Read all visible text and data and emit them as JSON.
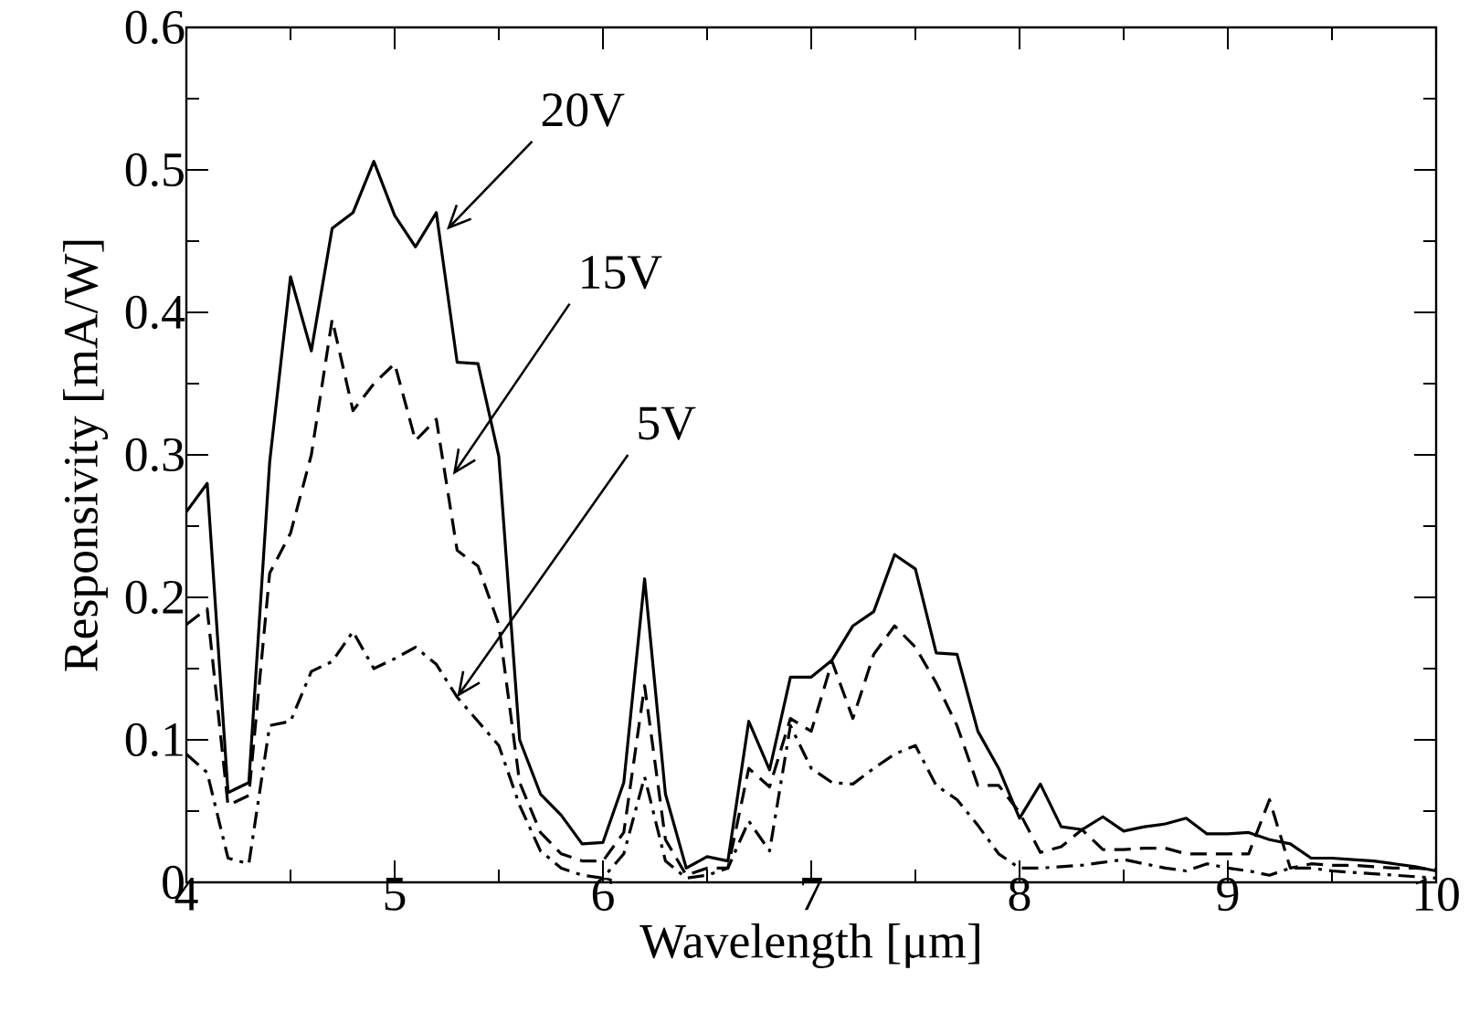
{
  "chart_data": {
    "type": "line",
    "xlabel": "Wavelength [μm]",
    "ylabel": "Responsivity [mA/W]",
    "x": [
      4.0,
      4.1,
      4.2,
      4.3,
      4.4,
      4.5,
      4.6,
      4.7,
      4.8,
      4.9,
      5.0,
      5.1,
      5.2,
      5.3,
      5.4,
      5.5,
      5.6,
      5.7,
      5.8,
      5.9,
      6.0,
      6.1,
      6.2,
      6.3,
      6.4,
      6.5,
      6.6,
      6.7,
      6.8,
      6.9,
      7.0,
      7.1,
      7.2,
      7.3,
      7.4,
      7.5,
      7.6,
      7.7,
      7.8,
      7.9,
      8.0,
      8.1,
      8.2,
      8.3,
      8.4,
      8.5,
      8.6,
      8.7,
      8.8,
      8.9,
      9.0,
      9.1,
      9.2,
      9.3,
      9.4,
      9.5,
      9.6,
      9.7,
      9.8,
      9.9,
      10.0
    ],
    "series": [
      {
        "color": "#000000",
        "line_style": "solid",
        "values": [
          0.26,
          0.28,
          0.063,
          0.07,
          0.295,
          0.425,
          0.373,
          0.459,
          0.47,
          0.506,
          0.468,
          0.446,
          0.47,
          0.365,
          0.364,
          0.299,
          0.1,
          0.062,
          0.047,
          0.027,
          0.028,
          0.07,
          0.213,
          0.062,
          0.01,
          0.018,
          0.015,
          0.113,
          0.079,
          0.144,
          0.144,
          0.156,
          0.18,
          0.19,
          0.23,
          0.22,
          0.161,
          0.16,
          0.106,
          0.08,
          0.045,
          0.069,
          0.039,
          0.037,
          0.046,
          0.036,
          0.039,
          0.041,
          0.045,
          0.034,
          0.034,
          0.035,
          0.03,
          0.027,
          0.017,
          0.017,
          0.016,
          0.015,
          0.013,
          0.011,
          0.008
        ]
      },
      {
        "color": "#000000",
        "line_style": "dashed",
        "values": [
          0.181,
          0.192,
          0.054,
          0.061,
          0.217,
          0.245,
          0.3,
          0.395,
          0.331,
          0.35,
          0.364,
          0.31,
          0.325,
          0.233,
          0.222,
          0.181,
          0.07,
          0.035,
          0.02,
          0.015,
          0.015,
          0.035,
          0.138,
          0.03,
          0.005,
          0.01,
          0.01,
          0.08,
          0.067,
          0.115,
          0.106,
          0.155,
          0.115,
          0.16,
          0.18,
          0.165,
          0.14,
          0.11,
          0.068,
          0.068,
          0.049,
          0.021,
          0.025,
          0.037,
          0.023,
          0.023,
          0.024,
          0.024,
          0.02,
          0.02,
          0.02,
          0.02,
          0.058,
          0.01,
          0.013,
          0.012,
          0.012,
          0.011,
          0.01,
          0.01,
          0.009
        ]
      },
      {
        "color": "#000000",
        "line_style": "dashdot",
        "values": [
          0.09,
          0.077,
          0.017,
          0.013,
          0.11,
          0.113,
          0.148,
          0.155,
          0.176,
          0.15,
          0.157,
          0.165,
          0.153,
          0.13,
          0.113,
          0.096,
          0.054,
          0.022,
          0.01,
          0.005,
          0.003,
          0.02,
          0.074,
          0.015,
          0.003,
          0.005,
          0.01,
          0.043,
          0.022,
          0.11,
          0.08,
          0.07,
          0.069,
          0.08,
          0.09,
          0.096,
          0.068,
          0.058,
          0.04,
          0.02,
          0.01,
          0.01,
          0.011,
          0.012,
          0.014,
          0.016,
          0.013,
          0.01,
          0.008,
          0.013,
          0.01,
          0.008,
          0.005,
          0.01,
          0.01,
          0.008,
          0.007,
          0.006,
          0.005,
          0.004,
          0.003
        ]
      }
    ],
    "xlim": [
      4,
      10
    ],
    "ylim": [
      0,
      0.6
    ],
    "xticks": [
      4,
      5,
      6,
      7,
      8,
      9,
      10
    ],
    "yticks": [
      0,
      0.1,
      0.2,
      0.3,
      0.4,
      0.5,
      0.6
    ],
    "annotations": [
      {
        "text": "20V",
        "x": 5.25,
        "y": 0.458
      },
      {
        "text": "15V",
        "x": 5.28,
        "y": 0.286
      },
      {
        "text": "5V",
        "x": 5.3,
        "y": 0.13
      }
    ],
    "grid": false,
    "marker": "none"
  }
}
